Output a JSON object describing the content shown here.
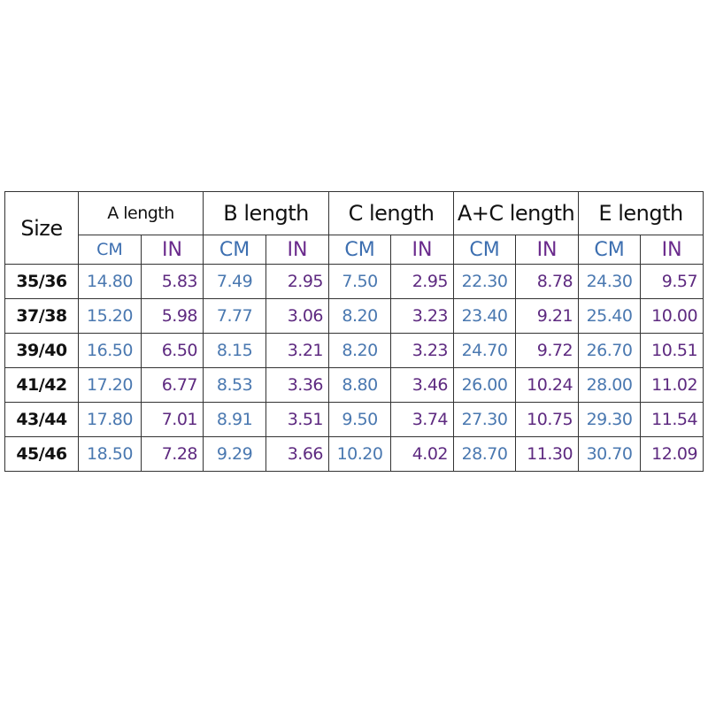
{
  "headers": {
    "size": "Size",
    "groups": [
      "A length",
      "B length",
      "C length",
      "A+C length",
      "E length"
    ],
    "cm": "CM",
    "in": "IN"
  },
  "colors": {
    "cm": "#3d6fb0",
    "in": "#6a2a8c"
  },
  "rows": [
    {
      "size": "35/36",
      "values": [
        "14.80",
        "5.83",
        "7.49",
        "2.95",
        "7.50",
        "2.95",
        "22.30",
        "8.78",
        "24.30",
        "9.57"
      ]
    },
    {
      "size": "37/38",
      "values": [
        "15.20",
        "5.98",
        "7.77",
        "3.06",
        "8.20",
        "3.23",
        "23.40",
        "9.21",
        "25.40",
        "10.00"
      ]
    },
    {
      "size": "39/40",
      "values": [
        "16.50",
        "6.50",
        "8.15",
        "3.21",
        "8.20",
        "3.23",
        "24.70",
        "9.72",
        "26.70",
        "10.51"
      ]
    },
    {
      "size": "41/42",
      "values": [
        "17.20",
        "6.77",
        "8.53",
        "3.36",
        "8.80",
        "3.46",
        "26.00",
        "10.24",
        "28.00",
        "11.02"
      ]
    },
    {
      "size": "43/44",
      "values": [
        "17.80",
        "7.01",
        "8.91",
        "3.51",
        "9.50",
        "3.74",
        "27.30",
        "10.75",
        "29.30",
        "11.54"
      ]
    },
    {
      "size": "45/46",
      "values": [
        "18.50",
        "7.28",
        "9.29",
        "3.66",
        "10.20",
        "4.02",
        "28.70",
        "11.30",
        "30.70",
        "12.09"
      ]
    }
  ]
}
